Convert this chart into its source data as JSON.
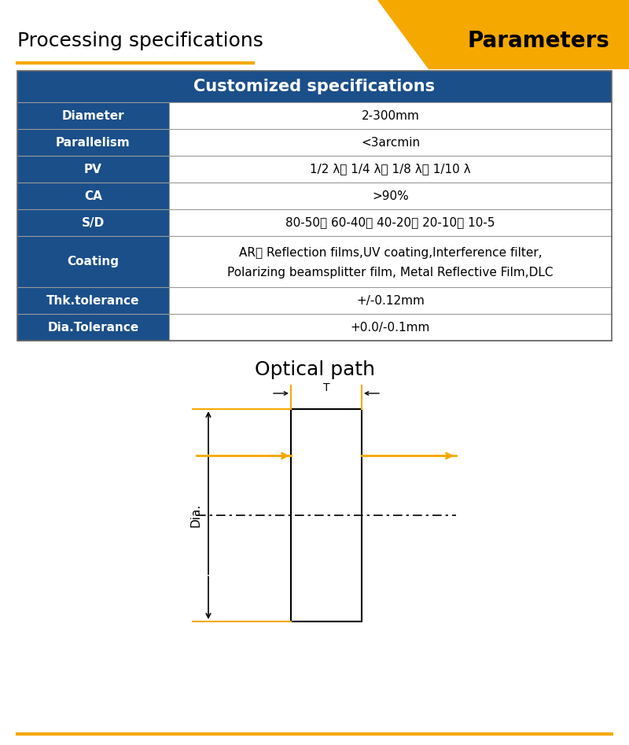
{
  "title_left": "Processing specifications",
  "title_right": "Parameters",
  "orange_color": "#F5A800",
  "dark_blue": "#1B4F8A",
  "table_header_text": "Customized specifications",
  "table_rows": [
    [
      "Diameter",
      "2-300mm"
    ],
    [
      "Parallelism",
      "<3arcmin"
    ],
    [
      "PV",
      "1/2 λ、 1/4 λ、 1/8 λ、 1/10 λ"
    ],
    [
      "CA",
      ">90%"
    ],
    [
      "S/D",
      "80-50、 60-40、 40-20、 20-10、 10-5"
    ],
    [
      "Coating",
      "AR、 Reflection films,UV coating,Interference filter,\nPolarizing beamsplitter film, Metal Reflective Film,DLC"
    ],
    [
      "Thk.tolerance",
      "+/-0.12mm"
    ],
    [
      "Dia.Tolerance",
      "+0.0/-0.1mm"
    ]
  ],
  "optical_path_title": "Optical path",
  "bg_color": "#FFFFFF",
  "black": "#000000"
}
